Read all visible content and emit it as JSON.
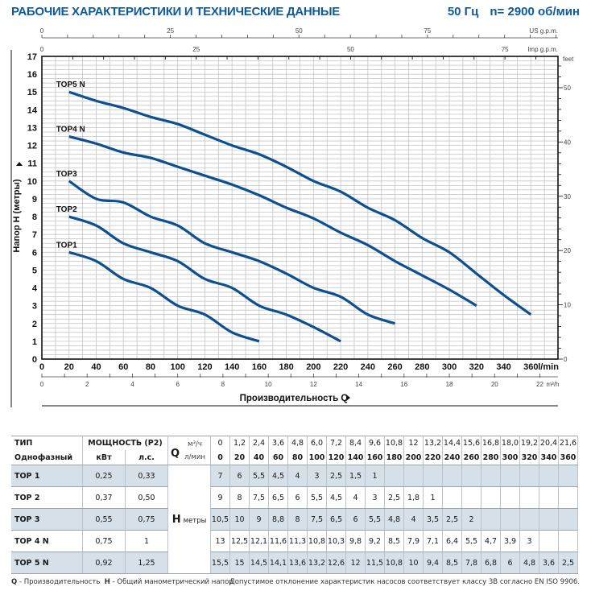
{
  "header": {
    "title": "РАБОЧИЕ ХАРАКТЕРИСТИКИ И ТЕХНИЧЕСКИЕ ДАННЫЕ",
    "frequency": "50 Гц",
    "speed": "n= 2900 об/мин"
  },
  "chart_data": {
    "type": "line",
    "title": "",
    "xlabel": "Производительность Q",
    "ylabel": "Напор H (метры)",
    "xlim": [
      0,
      380
    ],
    "ylim": [
      0,
      17
    ],
    "x_unit": "l/min",
    "grid": true,
    "x_ticks": [
      0,
      20,
      40,
      60,
      80,
      100,
      120,
      140,
      160,
      180,
      200,
      220,
      240,
      260,
      280,
      300,
      320,
      340,
      360
    ],
    "y_ticks": [
      0,
      1,
      2,
      3,
      4,
      5,
      6,
      7,
      8,
      9,
      10,
      11,
      12,
      13,
      14,
      15,
      16,
      17
    ],
    "secondary_axes": {
      "us_gpm": {
        "label": "US g.p.m.",
        "ticks": [
          0,
          25,
          50,
          75
        ],
        "per_lmin": 0.264172
      },
      "imp_gpm": {
        "label": "Imp g.p.m.",
        "ticks": [
          0,
          25,
          50,
          75
        ],
        "per_lmin": 0.219969
      },
      "m3h": {
        "label": "m³/h",
        "ticks": [
          0,
          2,
          4,
          6,
          8,
          10,
          12,
          14,
          16,
          18,
          20,
          22
        ],
        "per_lmin": 0.06
      },
      "feet": {
        "label": "feet",
        "ticks": [
          0,
          10,
          20,
          30,
          40,
          50
        ],
        "per_m": 3.28084
      }
    },
    "series": [
      {
        "name": "TOP1",
        "x": [
          20,
          40,
          60,
          80,
          100,
          120,
          140,
          160
        ],
        "y": [
          6,
          5.5,
          4.5,
          4,
          3,
          2.5,
          1.5,
          1
        ]
      },
      {
        "name": "TOP2",
        "x": [
          20,
          40,
          60,
          80,
          100,
          120,
          140,
          160,
          180,
          200,
          220
        ],
        "y": [
          8,
          7.5,
          6.5,
          6,
          5.5,
          4.5,
          4,
          3,
          2.5,
          1.8,
          1
        ]
      },
      {
        "name": "TOP3",
        "x": [
          20,
          40,
          60,
          80,
          100,
          120,
          140,
          160,
          180,
          200,
          220,
          240,
          260
        ],
        "y": [
          10,
          9,
          8.8,
          8,
          7.5,
          6.5,
          6,
          5.5,
          4.8,
          4,
          3.5,
          2.5,
          2
        ]
      },
      {
        "name": "TOP4 N",
        "x": [
          20,
          40,
          60,
          80,
          100,
          120,
          140,
          160,
          180,
          200,
          220,
          240,
          260,
          280,
          300,
          320
        ],
        "y": [
          12.5,
          12.1,
          11.6,
          11.3,
          10.8,
          10.3,
          9.8,
          9.2,
          8.5,
          7.9,
          7.1,
          6.4,
          5.5,
          4.7,
          3.9,
          3
        ]
      },
      {
        "name": "TOP5 N",
        "x": [
          20,
          40,
          60,
          80,
          100,
          120,
          140,
          160,
          180,
          200,
          220,
          240,
          260,
          280,
          300,
          320,
          340,
          360
        ],
        "y": [
          15,
          14.5,
          14.1,
          13.6,
          13.2,
          12.6,
          12,
          11.5,
          10.8,
          10,
          9.4,
          8.5,
          7.8,
          6.8,
          6,
          4.8,
          3.6,
          2.5
        ]
      }
    ],
    "line_color": "#0d4f8f"
  },
  "table": {
    "h_type": "ТИП",
    "h_phase": "Однофазный",
    "h_power": "МОЩНОСТЬ (P2)",
    "h_kw": "кВт",
    "h_hp": "л.с.",
    "h_q": "Q",
    "h_m3h": "м³/ч",
    "h_lmin": "л/мин",
    "h_H": "H",
    "h_metres": "метры",
    "q_m3h": [
      "0",
      "1,2",
      "2,4",
      "3,6",
      "4,8",
      "6,0",
      "7,2",
      "8,4",
      "9,6",
      "10,8",
      "12",
      "13,2",
      "14,4",
      "15,6",
      "16,8",
      "18,0",
      "19,2",
      "20,4",
      "21,6"
    ],
    "q_lmin": [
      "0",
      "20",
      "40",
      "60",
      "80",
      "100",
      "120",
      "140",
      "160",
      "180",
      "200",
      "220",
      "240",
      "260",
      "280",
      "300",
      "320",
      "340",
      "360"
    ],
    "rows": [
      {
        "type": "TOP 1",
        "kw": "0,25",
        "hp": "0,33",
        "h": [
          "7",
          "6",
          "5,5",
          "4,5",
          "4",
          "3",
          "2,5",
          "1,5",
          "1",
          "",
          "",
          "",
          "",
          "",
          "",
          "",
          "",
          "",
          ""
        ]
      },
      {
        "type": "TOP 2",
        "kw": "0,37",
        "hp": "0,50",
        "h": [
          "9",
          "8",
          "7,5",
          "6,5",
          "6",
          "5,5",
          "4,5",
          "4",
          "3",
          "2,5",
          "1,8",
          "1",
          "",
          "",
          "",
          "",
          "",
          "",
          ""
        ]
      },
      {
        "type": "TOP 3",
        "kw": "0,55",
        "hp": "0,75",
        "h": [
          "10,5",
          "10",
          "9",
          "8,8",
          "8",
          "7,5",
          "6,5",
          "6",
          "5,5",
          "4,8",
          "4",
          "3,5",
          "2,5",
          "2",
          "",
          "",
          "",
          "",
          ""
        ]
      },
      {
        "type": "TOP 4 N",
        "kw": "0,75",
        "hp": "1",
        "h": [
          "13",
          "12,5",
          "12,1",
          "11,6",
          "11,3",
          "10,8",
          "10,3",
          "9,8",
          "9,2",
          "8,5",
          "7,9",
          "7,1",
          "6,4",
          "5,5",
          "4,7",
          "3,9",
          "3",
          "",
          ""
        ]
      },
      {
        "type": "TOP 5 N",
        "kw": "0,92",
        "hp": "1,25",
        "h": [
          "15,5",
          "15",
          "14,5",
          "14,1",
          "13,6",
          "13,2",
          "12,6",
          "12",
          "11,5",
          "10,8",
          "10",
          "9,4",
          "8,5",
          "7,8",
          "6,8",
          "6",
          "4,8",
          "3,6",
          "2,5"
        ]
      }
    ]
  },
  "footer": {
    "q_key": "Q",
    "q_desc": " - Производительность",
    "h_key": "H",
    "h_desc": " - Общий манометрический напор",
    "tolerance": "Допустимое отклонение характеристик насосов соответствует классу 3В согласно EN ISO 9906."
  }
}
